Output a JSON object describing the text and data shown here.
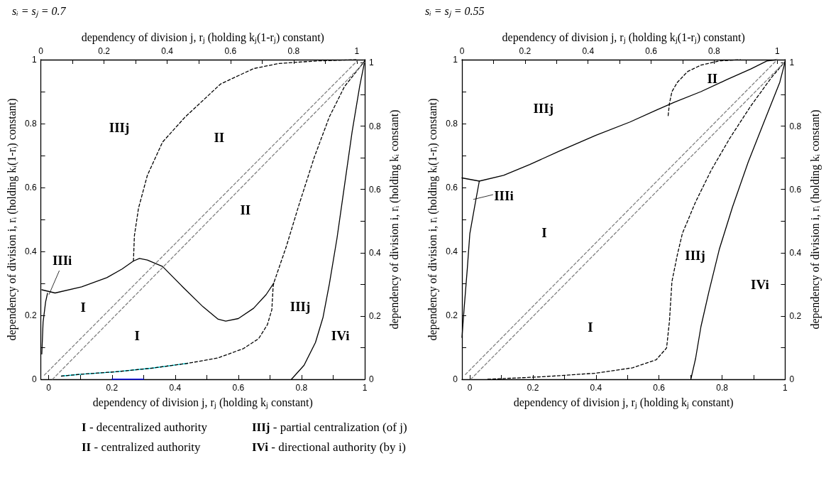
{
  "chart_data": [
    {
      "type": "line",
      "title": "sᵢ = sⱼ = 0.7",
      "xlabel": "dependency of division j, rⱼ (holding kⱼ constant)",
      "x2label": "dependency of division j, rⱼ (holding kⱼ(1-rⱼ) constant)",
      "ylabel": "dependency of division i, rᵢ (holding kᵢ(1-rᵢ) constant)",
      "y2label": "dependency of division i, rᵢ (holding kᵢ constant)",
      "xlim": [
        -0.025,
        1
      ],
      "xticks": [
        0,
        {
          "value": 0.1,
          "label": null
        },
        0.2,
        {
          "value": 0.3,
          "label": null
        },
        0.4,
        {
          "value": 0.5,
          "label": null
        },
        0.6,
        {
          "value": 0.7,
          "label": null
        },
        0.8,
        {
          "value": 0.9,
          "label": null
        },
        1
      ],
      "x2lim": [
        0,
        1.025
      ],
      "x2ticks": [
        0,
        {
          "value": 0.1,
          "label": null
        },
        0.2,
        {
          "value": 0.3,
          "label": null
        },
        0.4,
        {
          "value": 0.5,
          "label": null
        },
        0.6,
        {
          "value": 0.7,
          "label": null
        },
        0.8,
        {
          "value": 0.9,
          "label": null
        },
        1
      ],
      "ylim": [
        0,
        1
      ],
      "yticks": [
        0,
        {
          "value": 0.1,
          "label": null
        },
        0.2,
        {
          "value": 0.3,
          "label": null
        },
        0.4,
        {
          "value": 0.5,
          "label": null
        },
        0.6,
        {
          "value": 0.7,
          "label": null
        },
        0.8,
        {
          "value": 0.9,
          "label": null
        },
        1
      ],
      "y2lim": [
        0,
        1.01
      ],
      "y2ticks": [
        0,
        {
          "value": 0.1,
          "label": null
        },
        0.2,
        {
          "value": 0.3,
          "label": null
        },
        0.4,
        {
          "value": 0.5,
          "label": null
        },
        0.6,
        {
          "value": 0.7,
          "label": null
        },
        0.8,
        {
          "value": 0.9,
          "label": null
        },
        1
      ],
      "marker": "none",
      "grid": false,
      "series": [
        {
          "color": "#808080",
          "line_style": "dashed",
          "x": [
            -0.014,
            0.976
          ],
          "values": [
            0.013,
            0.996
          ]
        },
        {
          "color": "#808080",
          "line_style": "dashed",
          "x": [
            0.012,
            1.0
          ],
          "values": [
            0,
            0.992
          ]
        },
        {
          "color": "#000000",
          "line_style": "solid",
          "x": [
            -0.022,
            0.02,
            0.104,
            0.184,
            0.232,
            0.268,
            0.287,
            0.312,
            0.36,
            0.424,
            0.488,
            0.536,
            0.56,
            0.6,
            0.648,
            0.688,
            0.712
          ],
          "values": [
            0.28,
            0.27,
            0.289,
            0.318,
            0.345,
            0.37,
            0.378,
            0.373,
            0.353,
            0.289,
            0.227,
            0.188,
            0.182,
            0.19,
            0.222,
            0.265,
            0.301
          ]
        },
        {
          "color": "#000000",
          "line_style": "solid",
          "x": [
            -0.022,
            -0.018,
            -0.01,
            -0.004
          ],
          "values": [
            0.079,
            0.178,
            0.242,
            0.269
          ]
        },
        {
          "color": "#000000",
          "line_style": "dashed",
          "x": [
            0.268,
            0.271,
            0.284,
            0.312,
            0.36,
            0.432,
            0.544,
            0.648,
            0.728,
            0.848,
            0.972
          ],
          "values": [
            0.37,
            0.449,
            0.535,
            0.638,
            0.742,
            0.821,
            0.924,
            0.972,
            0.988,
            0.996,
            1.0
          ]
        },
        {
          "color": "#000000",
          "line_style": "dashed",
          "x": [
            0.04,
            0.104,
            0.208,
            0.328,
            0.44,
            0.536,
            0.616,
            0.664,
            0.692,
            0.706,
            0.71,
            0.712,
            0.752,
            0.791,
            0.84,
            0.888,
            0.936,
            1.0
          ],
          "values": [
            0.01,
            0.016,
            0.023,
            0.035,
            0.05,
            0.067,
            0.096,
            0.127,
            0.171,
            0.218,
            0.289,
            0.301,
            0.416,
            0.543,
            0.694,
            0.821,
            0.916,
            0.996
          ]
        },
        {
          "color": "#00e5ee",
          "line_style": "solid",
          "x": [
            0.04,
            0.104,
            0.208,
            0.328,
            0.44
          ],
          "values": [
            0.01,
            0.016,
            0.023,
            0.035,
            0.05
          ]
        },
        {
          "color": "#0000ff",
          "line_style": "solid",
          "x": [
            0.2,
            0.3
          ],
          "values": [
            0,
            0
          ]
        },
        {
          "color": "#000000",
          "line_style": "solid",
          "x": [
            0.768,
            0.808,
            0.844,
            0.868,
            0.888,
            0.912,
            0.936,
            0.96,
            0.984,
            1.0
          ],
          "values": [
            0,
            0.044,
            0.115,
            0.194,
            0.298,
            0.44,
            0.607,
            0.774,
            0.917,
            0.996
          ]
        }
      ],
      "annotations": [
        "IIIj",
        "II",
        "II",
        "IIIi",
        "I",
        "I",
        "IIIj",
        "IVi",
        "I - decentralized authority",
        "IIIj - partial centralization (of j)",
        "II - centralized authority",
        "IVi - directional authority (by i)"
      ]
    },
    {
      "type": "line",
      "title": "sᵢ = sⱼ = 0.55",
      "xlabel": "dependency of division j, rⱼ (holding kⱼ constant)",
      "x2label": "dependency of division j, rⱼ (holding kⱼ(1-rⱼ) constant)",
      "ylabel": "dependency of division i, rᵢ (holding kᵢ(1-rᵢ) constant)",
      "y2label": "dependency of division i, rᵢ (holding kᵢ constant)",
      "xlim": [
        -0.025,
        1
      ],
      "xticks": [
        0,
        {
          "value": 0.1,
          "label": null
        },
        0.2,
        {
          "value": 0.3,
          "label": null
        },
        0.4,
        {
          "value": 0.5,
          "label": null
        },
        0.6,
        {
          "value": 0.7,
          "label": null
        },
        0.8,
        {
          "value": 0.9,
          "label": null
        },
        1
      ],
      "x2lim": [
        0,
        1.025
      ],
      "x2ticks": [
        0,
        {
          "value": 0.1,
          "label": null
        },
        0.2,
        {
          "value": 0.3,
          "label": null
        },
        0.4,
        {
          "value": 0.5,
          "label": null
        },
        0.6,
        {
          "value": 0.7,
          "label": null
        },
        0.8,
        {
          "value": 0.9,
          "label": null
        },
        1
      ],
      "ylim": [
        0,
        1
      ],
      "yticks": [
        0,
        {
          "value": 0.1,
          "label": null
        },
        0.2,
        {
          "value": 0.3,
          "label": null
        },
        0.4,
        {
          "value": 0.5,
          "label": null
        },
        0.6,
        {
          "value": 0.7,
          "label": null
        },
        0.8,
        {
          "value": 0.9,
          "label": null
        },
        1
      ],
      "y2lim": [
        0,
        1.01
      ],
      "y2ticks": [
        0,
        {
          "value": 0.1,
          "label": null
        },
        0.2,
        {
          "value": 0.3,
          "label": null
        },
        0.4,
        {
          "value": 0.5,
          "label": null
        },
        0.6,
        {
          "value": 0.7,
          "label": null
        },
        0.8,
        {
          "value": 0.9,
          "label": null
        },
        1
      ],
      "marker": "none",
      "grid": false,
      "series": [
        {
          "color": "#808080",
          "line_style": "dashed",
          "x": [
            -0.014,
            0.975
          ],
          "values": [
            0.015,
            1.0
          ]
        },
        {
          "color": "#808080",
          "line_style": "dashed",
          "x": [
            0.003,
            1.0
          ],
          "values": [
            0,
            0.994
          ]
        },
        {
          "color": "#000000",
          "line_style": "solid",
          "x": [
            -0.025,
            -0.018,
            -0.008,
            0,
            0.015,
            0.03
          ],
          "values": [
            0.131,
            0.223,
            0.347,
            0.456,
            0.539,
            0.62
          ]
        },
        {
          "color": "#000000",
          "line_style": "solid",
          "x": [
            -0.025,
            0.03,
            0.107,
            0.19,
            0.282,
            0.399,
            0.508,
            0.591,
            0.649,
            0.733,
            0.816,
            0.891,
            0.942,
            0.975
          ],
          "values": [
            0.63,
            0.62,
            0.638,
            0.672,
            0.713,
            0.763,
            0.805,
            0.842,
            0.867,
            0.9,
            0.938,
            0.971,
            0.996,
            1.0
          ]
        },
        {
          "color": "#000000",
          "line_style": "dashed",
          "x": [
            0.629,
            0.633,
            0.641,
            0.658,
            0.691,
            0.733,
            0.791,
            0.858
          ],
          "values": [
            0.825,
            0.863,
            0.9,
            0.929,
            0.963,
            0.983,
            0.996,
            1.0
          ]
        },
        {
          "color": "#000000",
          "line_style": "dashed",
          "x": [
            0.057,
            0.232,
            0.399,
            0.516,
            0.591,
            0.624,
            0.633,
            0.641,
            0.658,
            0.674,
            0.716,
            0.766,
            0.825,
            0.891,
            0.958,
            1.0
          ],
          "values": [
            0,
            0.008,
            0.019,
            0.036,
            0.061,
            0.098,
            0.181,
            0.306,
            0.389,
            0.456,
            0.555,
            0.655,
            0.755,
            0.855,
            0.946,
            0.994
          ]
        },
        {
          "color": "#000000",
          "line_style": "solid",
          "x": [
            0.701,
            0.716,
            0.733,
            0.758,
            0.791,
            0.833,
            0.883,
            0.933,
            0.983,
            1.0
          ],
          "values": [
            0,
            0.065,
            0.165,
            0.273,
            0.406,
            0.539,
            0.68,
            0.805,
            0.929,
            0.994
          ]
        }
      ],
      "annotations": [
        "II",
        "IIIj",
        "IIIi",
        "I",
        "IIIj",
        "IVi",
        "I"
      ]
    }
  ]
}
